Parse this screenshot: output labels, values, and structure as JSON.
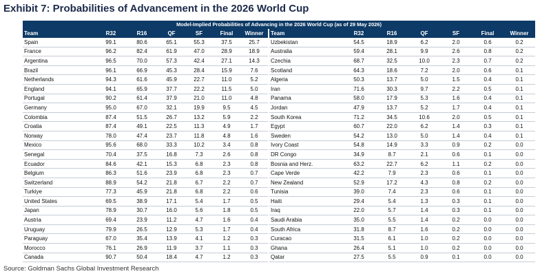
{
  "title": "Exhibit 7: Probabilities of Advancement in the 2026 World Cup",
  "table_title": "Model-Implied Probabilities of Advancing in the 2026 World Cup (as of 29 May 2026)",
  "columns": [
    "Team",
    "R32",
    "R16",
    "QF",
    "SF",
    "Final",
    "Winner"
  ],
  "left_rows": [
    [
      "Spain",
      "99.1",
      "80.6",
      "65.1",
      "55.3",
      "37.5",
      "25.7"
    ],
    [
      "France",
      "96.2",
      "82.4",
      "61.9",
      "47.0",
      "28.9",
      "18.9"
    ],
    [
      "Argentina",
      "96.5",
      "70.0",
      "57.3",
      "42.4",
      "27.1",
      "14.3"
    ],
    [
      "Brazil",
      "96.1",
      "66.9",
      "45.3",
      "28.4",
      "15.9",
      "7.6"
    ],
    [
      "Netherlands",
      "94.3",
      "61.6",
      "45.9",
      "22.7",
      "11.0",
      "5.2"
    ],
    [
      "England",
      "94.1",
      "65.9",
      "37.7",
      "22.2",
      "11.5",
      "5.0"
    ],
    [
      "Portugal",
      "90.2",
      "61.4",
      "37.9",
      "21.0",
      "11.0",
      "4.8"
    ],
    [
      "Germany",
      "95.0",
      "67.0",
      "32.1",
      "19.9",
      "9.5",
      "4.5"
    ],
    [
      "Colombia",
      "87.4",
      "51.5",
      "26.7",
      "13.2",
      "5.9",
      "2.2"
    ],
    [
      "Croatia",
      "87.4",
      "49.1",
      "22.5",
      "11.3",
      "4.9",
      "1.7"
    ],
    [
      "Norway",
      "78.0",
      "47.4",
      "23.7",
      "11.8",
      "4.8",
      "1.6"
    ],
    [
      "Mexico",
      "95.6",
      "68.0",
      "33.3",
      "10.2",
      "3.4",
      "0.8"
    ],
    [
      "Senegal",
      "70.4",
      "37.5",
      "16.8",
      "7.3",
      "2.6",
      "0.8"
    ],
    [
      "Ecuador",
      "84.6",
      "42.1",
      "15.3",
      "6.8",
      "2.3",
      "0.8"
    ],
    [
      "Belgium",
      "86.3",
      "51.6",
      "23.9",
      "6.8",
      "2.3",
      "0.7"
    ],
    [
      "Switzerland",
      "88.9",
      "54.2",
      "21.8",
      "6.7",
      "2.2",
      "0.7"
    ],
    [
      "Turkiye",
      "77.3",
      "45.9",
      "21.8",
      "6.8",
      "2.2",
      "0.6"
    ],
    [
      "United States",
      "69.5",
      "38.9",
      "17.1",
      "5.4",
      "1.7",
      "0.5"
    ],
    [
      "Japan",
      "78.9",
      "30.7",
      "16.0",
      "5.6",
      "1.8",
      "0.5"
    ],
    [
      "Austria",
      "69.4",
      "23.9",
      "11.2",
      "4.7",
      "1.6",
      "0.4"
    ],
    [
      "Uruguay",
      "79.9",
      "26.5",
      "12.9",
      "5.3",
      "1.7",
      "0.4"
    ],
    [
      "Paraguay",
      "67.0",
      "35.4",
      "13.9",
      "4.1",
      "1.2",
      "0.3"
    ],
    [
      "Morocco",
      "76.1",
      "26.9",
      "11.9",
      "3.7",
      "1.1",
      "0.3"
    ],
    [
      "Canada",
      "90.7",
      "50.4",
      "18.4",
      "4.7",
      "1.2",
      "0.3"
    ]
  ],
  "right_rows": [
    [
      "Uzbekistan",
      "54.5",
      "18.9",
      "6.2",
      "2.0",
      "0.6",
      "0.2"
    ],
    [
      "Australia",
      "59.4",
      "28.1",
      "9.9",
      "2.6",
      "0.8",
      "0.2"
    ],
    [
      "Czechia",
      "68.7",
      "32.5",
      "10.0",
      "2.3",
      "0.7",
      "0.2"
    ],
    [
      "Scotland",
      "64.3",
      "18.6",
      "7.2",
      "2.0",
      "0.6",
      "0.1"
    ],
    [
      "Algeria",
      "50.3",
      "13.7",
      "5.0",
      "1.5",
      "0.4",
      "0.1"
    ],
    [
      "Iran",
      "71.6",
      "30.3",
      "9.7",
      "2.2",
      "0.5",
      "0.1"
    ],
    [
      "Panama",
      "58.0",
      "17.9",
      "5.3",
      "1.6",
      "0.4",
      "0.1"
    ],
    [
      "Jordan",
      "47.9",
      "13.7",
      "5.2",
      "1.7",
      "0.4",
      "0.1"
    ],
    [
      "South Korea",
      "71.2",
      "34.5",
      "10.6",
      "2.0",
      "0.5",
      "0.1"
    ],
    [
      "Egypt",
      "60.7",
      "22.0",
      "6.2",
      "1.4",
      "0.3",
      "0.1"
    ],
    [
      "Sweden",
      "54.2",
      "13.0",
      "5.0",
      "1.4",
      "0.4",
      "0.1"
    ],
    [
      "Ivory Coast",
      "54.8",
      "14.9",
      "3.3",
      "0.9",
      "0.2",
      "0.0"
    ],
    [
      "DR Congo",
      "34.9",
      "8.7",
      "2.1",
      "0.6",
      "0.1",
      "0.0"
    ],
    [
      "Bosnia and Herz.",
      "63.2",
      "22.7",
      "6.2",
      "1.1",
      "0.2",
      "0.0"
    ],
    [
      "Cape Verde",
      "42.2",
      "7.9",
      "2.3",
      "0.6",
      "0.1",
      "0.0"
    ],
    [
      "New Zealand",
      "52.9",
      "17.2",
      "4.3",
      "0.8",
      "0.2",
      "0.0"
    ],
    [
      "Tunisia",
      "39.0",
      "7.4",
      "2.3",
      "0.6",
      "0.1",
      "0.0"
    ],
    [
      "Haiti",
      "29.4",
      "5.4",
      "1.3",
      "0.3",
      "0.1",
      "0.0"
    ],
    [
      "Iraq",
      "22.0",
      "5.7",
      "1.4",
      "0.3",
      "0.1",
      "0.0"
    ],
    [
      "Saudi Arabia",
      "35.0",
      "5.5",
      "1.4",
      "0.2",
      "0.0",
      "0.0"
    ],
    [
      "South Africa",
      "31.8",
      "8.7",
      "1.6",
      "0.2",
      "0.0",
      "0.0"
    ],
    [
      "Curacao",
      "31.5",
      "6.1",
      "1.0",
      "0.2",
      "0.0",
      "0.0"
    ],
    [
      "Ghana",
      "26.4",
      "5.1",
      "1.0",
      "0.2",
      "0.0",
      "0.0"
    ],
    [
      "Qatar",
      "27.5",
      "5.5",
      "0.9",
      "0.1",
      "0.0",
      "0.0"
    ]
  ],
  "source": "Source: Goldman Sachs Global Investment Research"
}
